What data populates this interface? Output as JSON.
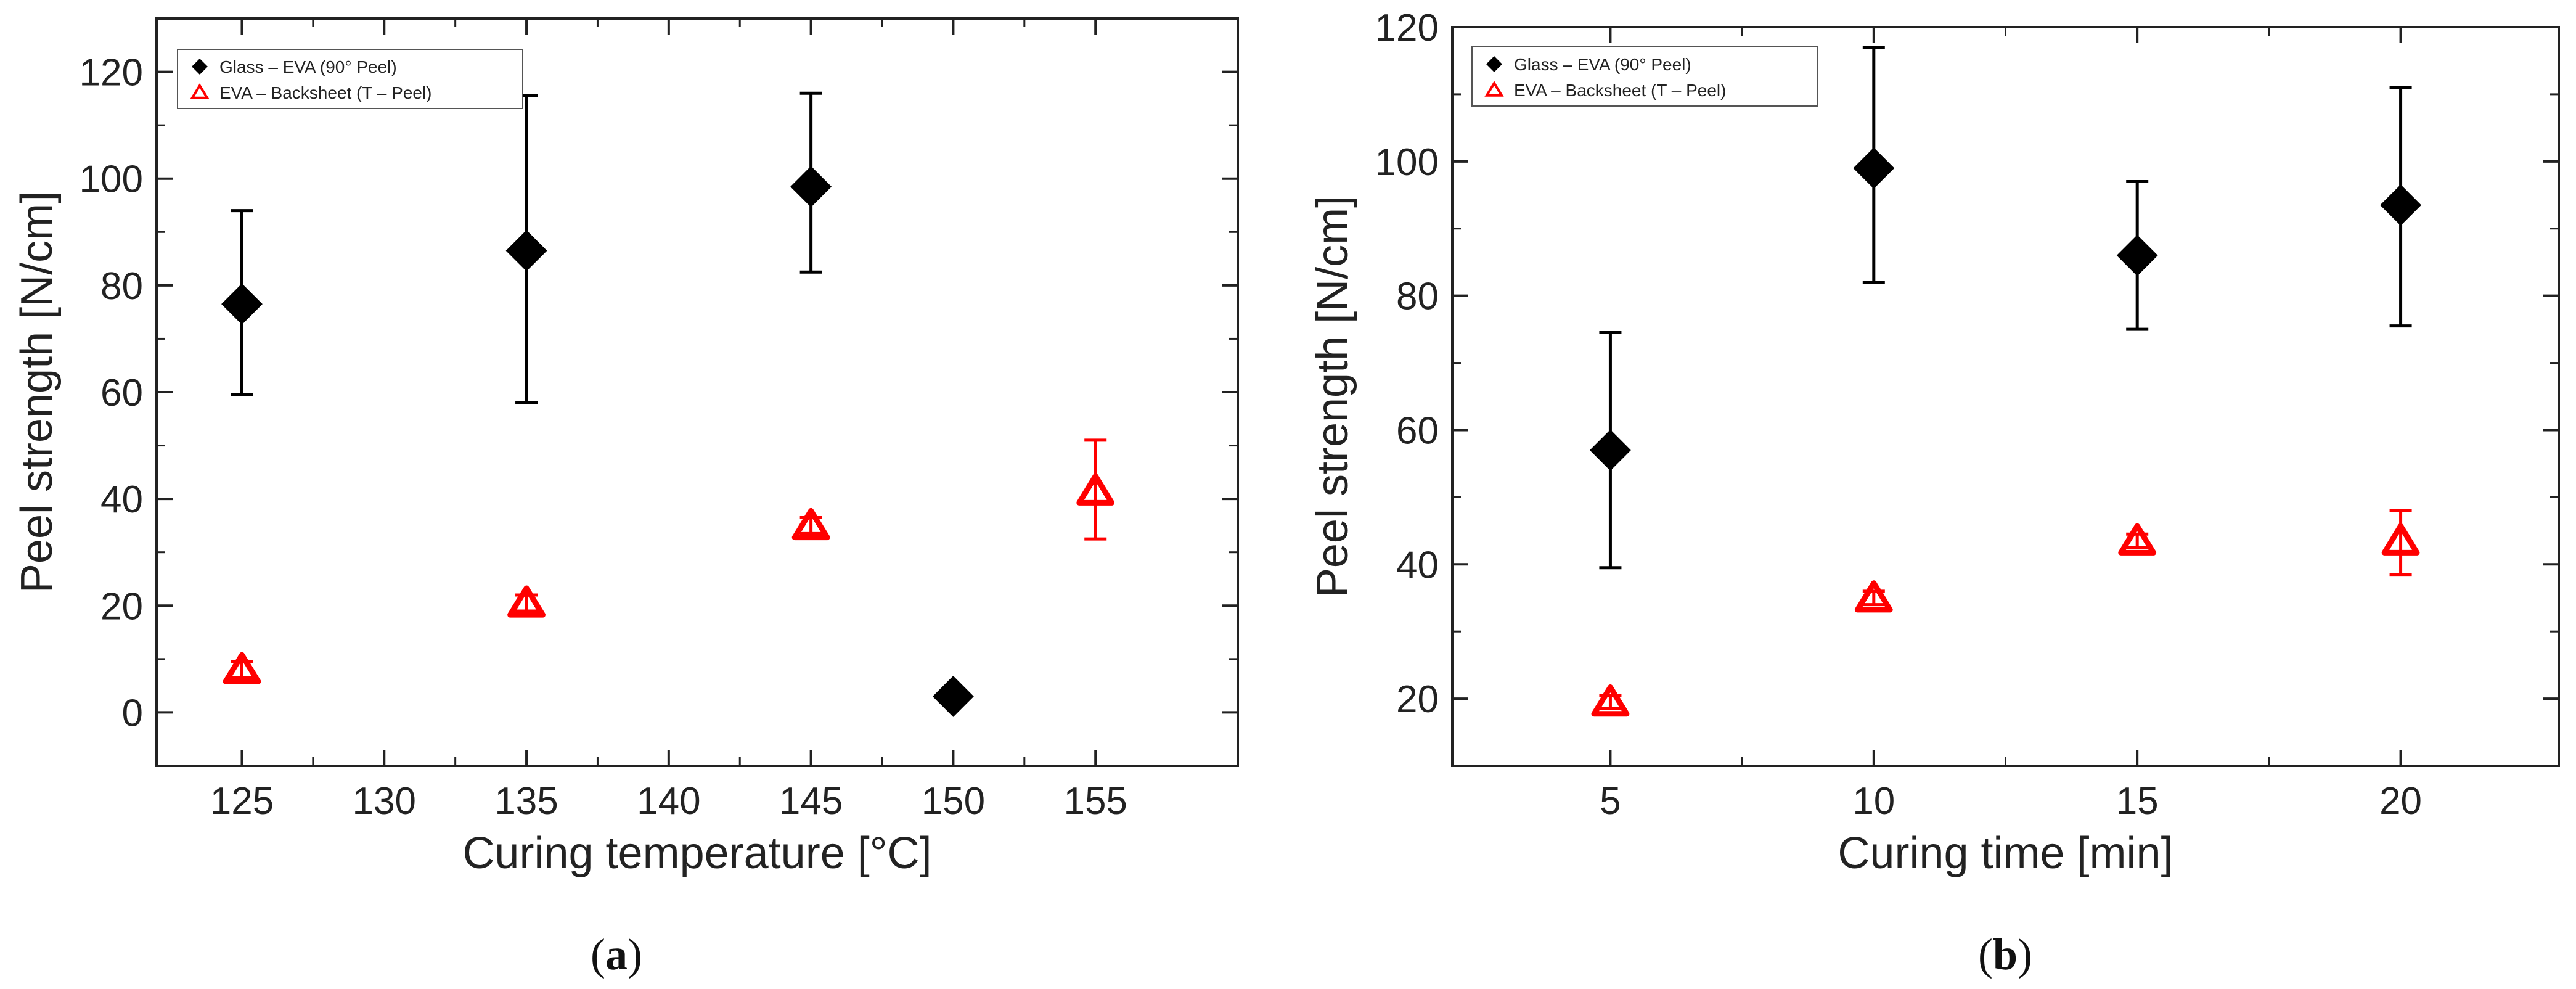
{
  "chart_data": [
    {
      "type": "scatter",
      "caption_letter": "a",
      "xlabel": "Curing temperature [°C]",
      "ylabel": "Peel strength [N/cm]",
      "xlim": [
        122,
        160
      ],
      "ylim": [
        -10,
        130
      ],
      "xticks": [
        "125",
        "130",
        "135",
        "140",
        "145",
        "150",
        "155"
      ],
      "yticks": [
        "0",
        "20",
        "40",
        "60",
        "80",
        "100",
        "120"
      ],
      "legend_position": "top-left",
      "series": [
        {
          "name": "Glass – EVA (90° Peel)",
          "color": "#000000",
          "marker": "filled-diamond",
          "points": [
            {
              "x": 125,
              "y": 76.5,
              "err_low": 59.5,
              "err_high": 94
            },
            {
              "x": 135,
              "y": 86.5,
              "err_low": 58,
              "err_high": 115.5
            },
            {
              "x": 145,
              "y": 98.5,
              "err_low": 82.5,
              "err_high": 116
            },
            {
              "x": 150,
              "y": 3,
              "err_low": 3,
              "err_high": 3
            }
          ]
        },
        {
          "name": "EVA – Backsheet (T – Peel)",
          "color": "#ff0000",
          "marker": "hollow-triangle",
          "points": [
            {
              "x": 125,
              "y": 8,
              "err_low": 6.5,
              "err_high": 9.5
            },
            {
              "x": 135,
              "y": 20.5,
              "err_low": 19,
              "err_high": 22
            },
            {
              "x": 145,
              "y": 35,
              "err_low": 33.5,
              "err_high": 36.5
            },
            {
              "x": 155,
              "y": 41.5,
              "err_low": 32.5,
              "err_high": 51
            }
          ]
        }
      ]
    },
    {
      "type": "scatter",
      "caption_letter": "b",
      "xlabel": "Curing time [min]",
      "ylabel": "Peel strength [N/cm]",
      "xlim": [
        2,
        23
      ],
      "ylim": [
        10,
        120
      ],
      "xticks": [
        "5",
        "10",
        "15",
        "20"
      ],
      "yticks": [
        "20",
        "40",
        "60",
        "80",
        "100",
        "120"
      ],
      "legend_position": "top-left",
      "series": [
        {
          "name": "Glass – EVA (90° Peel)",
          "color": "#000000",
          "marker": "filled-diamond",
          "points": [
            {
              "x": 5,
              "y": 57,
              "err_low": 39.5,
              "err_high": 74.5
            },
            {
              "x": 10,
              "y": 99,
              "err_low": 82,
              "err_high": 117
            },
            {
              "x": 15,
              "y": 86,
              "err_low": 75,
              "err_high": 97
            },
            {
              "x": 20,
              "y": 93.5,
              "err_low": 75.5,
              "err_high": 111
            }
          ]
        },
        {
          "name": "EVA – Backsheet (T – Peel)",
          "color": "#ff0000",
          "marker": "hollow-triangle",
          "points": [
            {
              "x": 5,
              "y": 19.5,
              "err_low": 18.5,
              "err_high": 20.5
            },
            {
              "x": 10,
              "y": 35,
              "err_low": 34,
              "err_high": 36
            },
            {
              "x": 15,
              "y": 43.5,
              "err_low": 42.5,
              "err_high": 44.5
            },
            {
              "x": 20,
              "y": 43.5,
              "err_low": 38.5,
              "err_high": 48
            }
          ]
        }
      ]
    }
  ]
}
